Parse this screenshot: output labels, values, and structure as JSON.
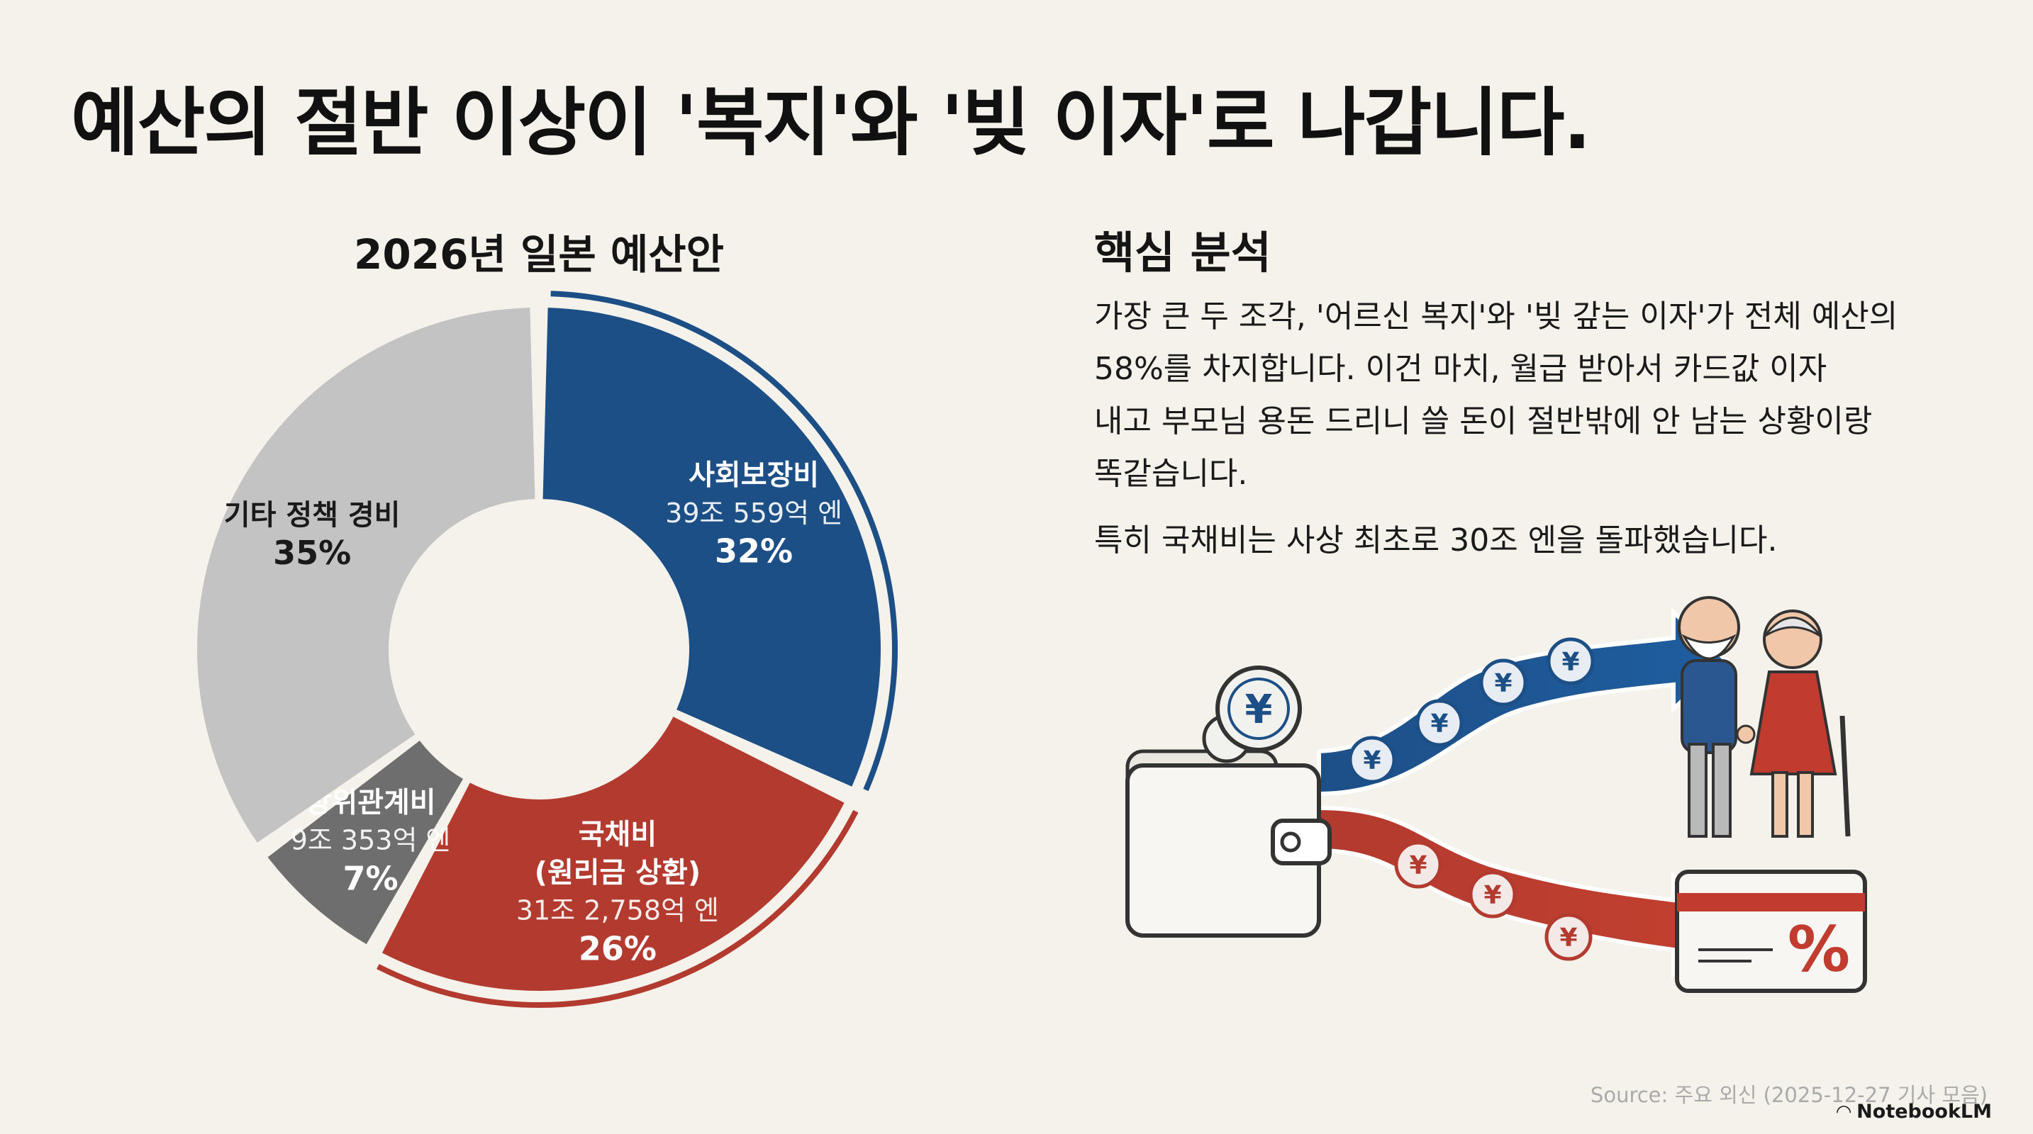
{
  "title": "예산의 절반 이상이 '복지'와 '빚 이자'로 나갑니다.",
  "chart_data": {
    "type": "pie",
    "title": "2026년 일본 예산안",
    "slices": [
      {
        "label": "사회보장비",
        "amount": "39조 559억 엔",
        "value": 32,
        "value_label": "32%",
        "color": "#1d4f87",
        "highlight": true
      },
      {
        "label": "국채비",
        "sublabel": "(원리금 상환)",
        "amount": "31조 2,758억 엔",
        "value": 26,
        "value_label": "26%",
        "color": "#b33a2f",
        "highlight": true
      },
      {
        "label": "방위관계비",
        "amount": "9조 353억 엔",
        "value": 7,
        "value_label": "7%",
        "color": "#6e6e6e",
        "highlight": false
      },
      {
        "label": "기타 정책 경비",
        "amount": "",
        "value": 35,
        "value_label": "35%",
        "color": "#c3c3c3",
        "highlight": false
      }
    ]
  },
  "analysis": {
    "heading": "핵심 분석",
    "paragraph1_lines": [
      "가장 큰 두 조각, '어르신 복지'와 '빚 갚는 이자'가 전체 예산의",
      "58%를 차지합니다. 이건 마치, 월급 받아서 카드값 이자",
      "내고 부모님 용돈 드리니 쓸 돈이 절반밖에 안 남는 상황이랑",
      "똑같습니다."
    ],
    "paragraph2": "특히 국채비는 사상 최초로 30조 엔을 돌파했습니다."
  },
  "illustration": {
    "coin_symbol": "¥",
    "card_symbol": "%",
    "icons": [
      "wallet-icon",
      "yen-coin-icon",
      "elderly-couple-icon",
      "credit-card-icon"
    ]
  },
  "footer": {
    "source": "Source: 주요 외신 (2025-12-27 기사 모음)",
    "brand": "NotebookLM"
  }
}
